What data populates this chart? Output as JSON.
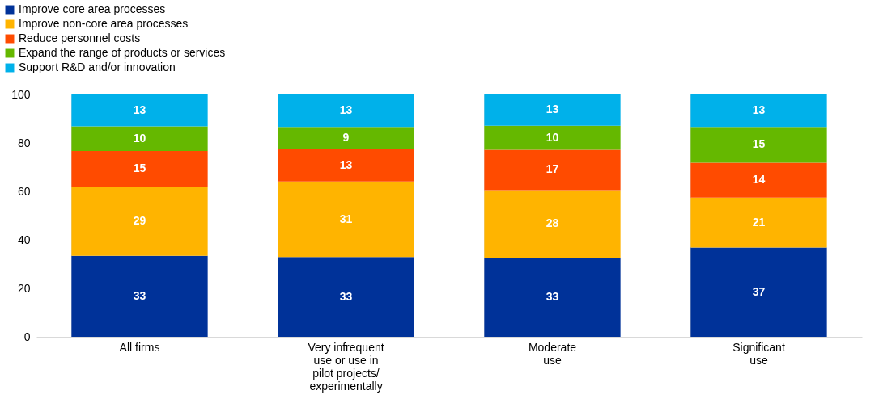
{
  "chart_data": {
    "type": "bar",
    "stacked": true,
    "categories": [
      "All firms",
      "Very infrequent\nuse or use in\npilot projects/\nexperimentally",
      "Moderate\nuse",
      "Significant\nuse"
    ],
    "series": [
      {
        "name": "Improve core area processes",
        "color": "#003299",
        "values": [
          33.4,
          32.9,
          32.6,
          36.8
        ],
        "value_labels": [
          "33",
          "33",
          "33",
          "37"
        ]
      },
      {
        "name": "Improve non-core area processes",
        "color": "#ffb400",
        "values": [
          28.6,
          31.2,
          27.9,
          20.6
        ],
        "value_labels": [
          "29",
          "31",
          "28",
          "21"
        ]
      },
      {
        "name": "Reduce personnel costs",
        "color": "#ff4b00",
        "values": [
          14.7,
          13.4,
          16.7,
          14.4
        ],
        "value_labels": [
          "15",
          "13",
          "17",
          "14"
        ]
      },
      {
        "name": "Expand the range of products or services",
        "color": "#65b800",
        "values": [
          10.1,
          9.1,
          9.9,
          14.8
        ],
        "value_labels": [
          "10",
          "9",
          "10",
          "15"
        ]
      },
      {
        "name": "Support R&D and/or innovation",
        "color": "#00b1ea",
        "values": [
          13.2,
          13.4,
          12.9,
          13.4
        ],
        "value_labels": [
          "13",
          "13",
          "13",
          "13"
        ]
      }
    ],
    "ylim": [
      0,
      100
    ],
    "yticks": [
      0,
      20,
      40,
      60,
      80,
      100
    ],
    "grid": "x",
    "legend": "top left"
  }
}
